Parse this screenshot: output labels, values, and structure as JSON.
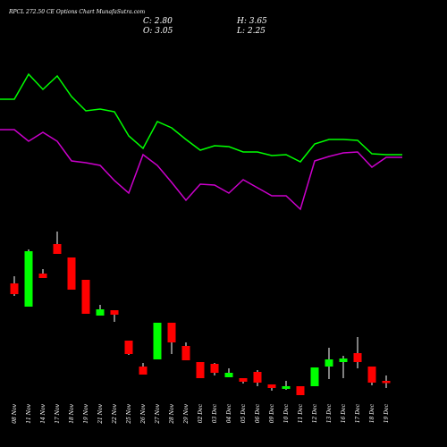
{
  "chart_data": {
    "type": "candlestick",
    "title": "RPCL 272.50 CE Options Chart MunafaSutra.com",
    "ohlc_labels": [
      "C: 2.80",
      "H: 3.65",
      "O: 3.05",
      "L: 2.25"
    ],
    "categories": [
      "08 Nov",
      "11 Nov",
      "14 Nov",
      "17 Nov",
      "18 Nov",
      "19 Nov",
      "21 Nov",
      "22 Nov",
      "25 Nov",
      "26 Nov",
      "27 Nov",
      "28 Nov",
      "29 Nov",
      "02 Dec",
      "03 Dec",
      "04 Dec",
      "05 Dec",
      "06 Dec",
      "09 Dec",
      "10 Dec",
      "11 Dec",
      "12 Dec",
      "13 Dec",
      "16 Dec",
      "17 Dec",
      "18 Dec",
      "19 Dec"
    ],
    "open": [
      13.95,
      11.35,
      15.05,
      18.35,
      16.85,
      14.35,
      10.35,
      10.95,
      7.55,
      4.65,
      5.45,
      9.55,
      6.95,
      5.15,
      4.95,
      3.45,
      3.35,
      4.05,
      2.65,
      2.15,
      2.45,
      2.45,
      4.65,
      5.15,
      6.15,
      4.65,
      3.05
    ],
    "high": [
      14.75,
      17.75,
      15.55,
      19.75,
      16.85,
      14.35,
      11.55,
      10.95,
      7.55,
      5.05,
      9.55,
      9.55,
      7.35,
      5.15,
      5.05,
      4.45,
      3.35,
      4.25,
      2.65,
      3.05,
      2.45,
      4.55,
      6.75,
      5.85,
      7.95,
      4.65,
      3.65
    ],
    "low": [
      12.55,
      11.35,
      14.55,
      17.25,
      13.25,
      10.55,
      10.35,
      9.65,
      5.95,
      3.75,
      5.45,
      6.05,
      5.35,
      3.35,
      3.65,
      3.45,
      2.75,
      2.45,
      1.95,
      2.05,
      1.45,
      2.45,
      3.25,
      3.35,
      4.45,
      2.55,
      2.25
    ],
    "close": [
      12.75,
      17.55,
      14.55,
      17.25,
      13.25,
      10.55,
      11.05,
      10.45,
      6.05,
      3.75,
      9.55,
      7.35,
      5.35,
      3.35,
      3.95,
      3.95,
      2.95,
      2.85,
      2.25,
      2.45,
      1.45,
      4.55,
      5.45,
      5.55,
      5.15,
      2.85,
      2.8
    ],
    "up_color": "#00ff00",
    "down_color": "#ff0000",
    "lines": [
      {
        "color": "#00ff00",
        "values": [
          189,
          217,
          200,
          215,
          192,
          176,
          178,
          175,
          148,
          134,
          164,
          157,
          144,
          132,
          137,
          136,
          130,
          130,
          126,
          127,
          119,
          139,
          144,
          144,
          143,
          128,
          127
        ]
      },
      {
        "color": "#cc00cc",
        "values": [
          155,
          142,
          152,
          142,
          120,
          118,
          115,
          98,
          84,
          127,
          115,
          96,
          76,
          94,
          93,
          84,
          99,
          90,
          81,
          81,
          66,
          120,
          125,
          129,
          130,
          113,
          124
        ]
      }
    ]
  }
}
